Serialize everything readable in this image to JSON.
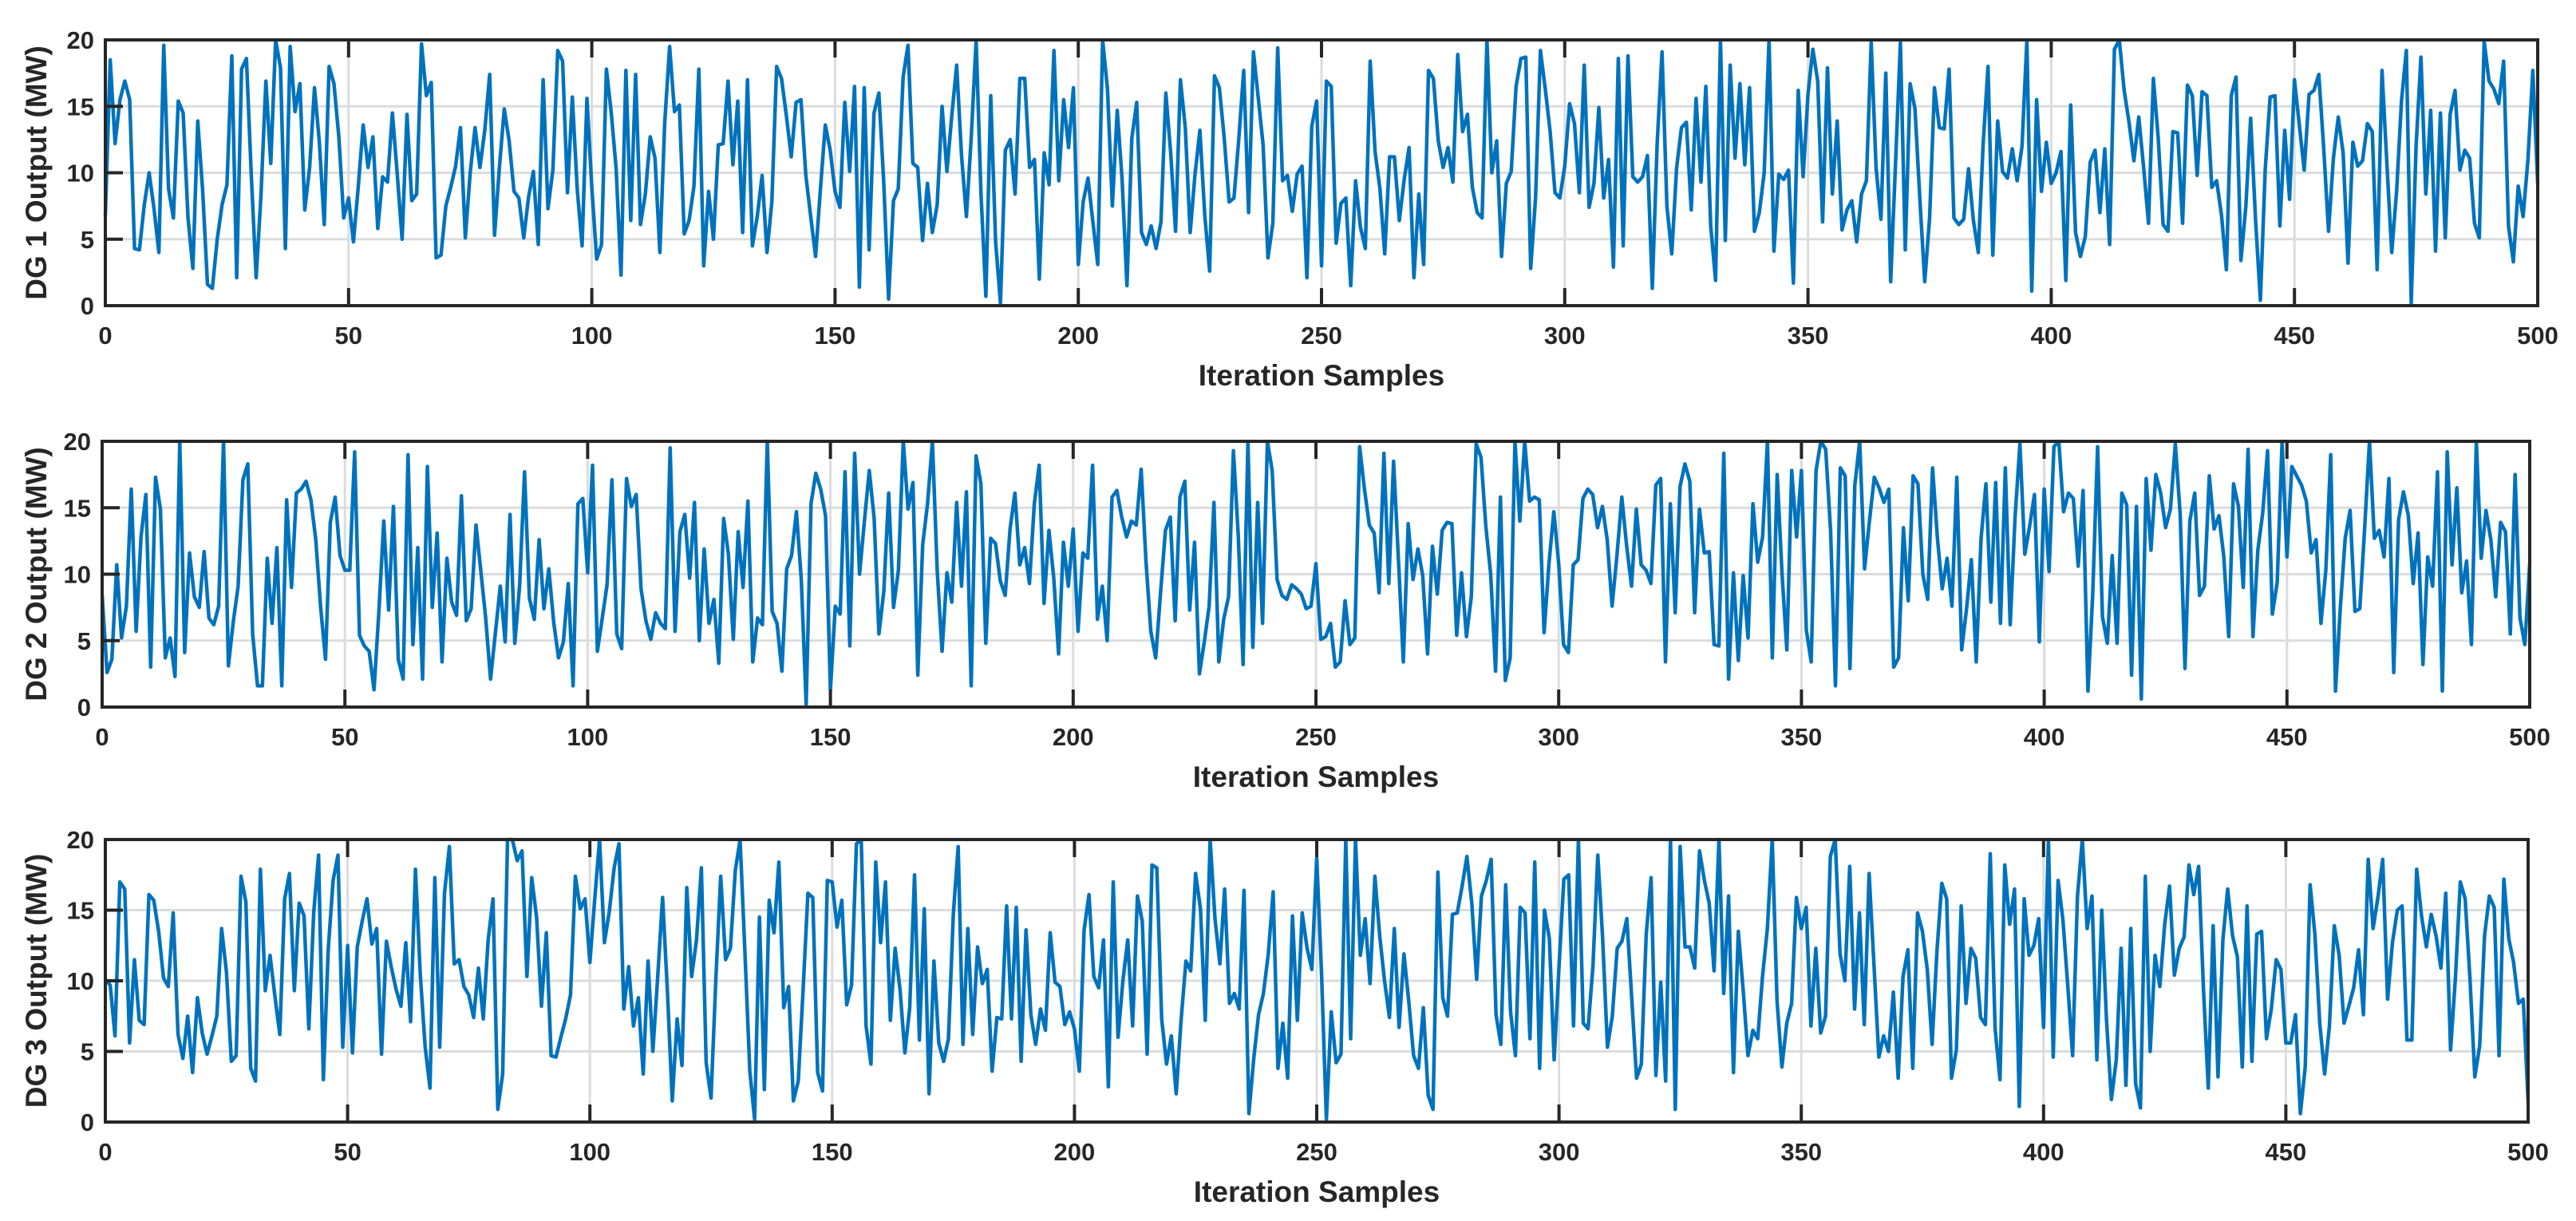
{
  "chart_data": [
    {
      "type": "line",
      "title": "",
      "xlabel": "Iteration Samples",
      "ylabel": "DG 1 Output (MW)",
      "xlim": [
        0,
        500
      ],
      "ylim": [
        0,
        20
      ],
      "xticks": [
        "0",
        "50",
        "100",
        "150",
        "200",
        "250",
        "300",
        "350",
        "400",
        "450",
        "500"
      ],
      "yticks": [
        "0",
        "5",
        "10",
        "15",
        "20"
      ],
      "grid": true,
      "color": "#0072BD",
      "seed": 101,
      "series": [
        {
          "values": []
        }
      ]
    },
    {
      "type": "line",
      "title": "",
      "xlabel": "Iteration Samples",
      "ylabel": "DG 2 Output (MW)",
      "xlim": [
        0,
        500
      ],
      "ylim": [
        0,
        20
      ],
      "xticks": [
        "0",
        "50",
        "100",
        "150",
        "200",
        "250",
        "300",
        "350",
        "400",
        "450",
        "500"
      ],
      "yticks": [
        "0",
        "5",
        "10",
        "15",
        "20"
      ],
      "grid": true,
      "color": "#0072BD",
      "seed": 202,
      "series": [
        {
          "values": []
        }
      ]
    },
    {
      "type": "line",
      "title": "",
      "xlabel": "Iteration Samples",
      "ylabel": "DG 3 Output (MW)",
      "xlim": [
        0,
        500
      ],
      "ylim": [
        0,
        20
      ],
      "xticks": [
        "0",
        "50",
        "100",
        "150",
        "200",
        "250",
        "300",
        "350",
        "400",
        "450",
        "500"
      ],
      "yticks": [
        "0",
        "5",
        "10",
        "15",
        "20"
      ],
      "grid": true,
      "color": "#0072BD",
      "seed": 303,
      "series": [
        {
          "values": []
        }
      ]
    }
  ]
}
